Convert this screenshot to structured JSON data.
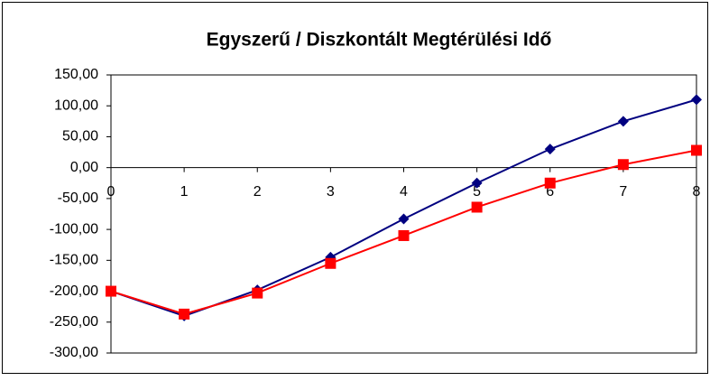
{
  "chart_data": {
    "type": "line",
    "title": "Egyszerű / Diszkontált Megtérülési Idő",
    "x": [
      0,
      1,
      2,
      3,
      4,
      5,
      6,
      7,
      8
    ],
    "xlim": [
      0,
      8
    ],
    "xticks": [
      0,
      1,
      2,
      3,
      4,
      5,
      6,
      7,
      8
    ],
    "ylim": [
      -300,
      150
    ],
    "yticks": [
      {
        "value": -300,
        "label": "-300,00"
      },
      {
        "value": -250,
        "label": "-250,00"
      },
      {
        "value": -200,
        "label": "-200,00"
      },
      {
        "value": -150,
        "label": "-150,00"
      },
      {
        "value": -100,
        "label": "-100,00"
      },
      {
        "value": -50,
        "label": "-50,00"
      },
      {
        "value": 0,
        "label": "0,00"
      },
      {
        "value": 50,
        "label": "50,00"
      },
      {
        "value": 100,
        "label": "100,00"
      },
      {
        "value": 150,
        "label": "150,00"
      }
    ],
    "grid": false,
    "series": [
      {
        "color": "#000080",
        "marker": "diamond",
        "values": [
          -200,
          -240,
          -198,
          -145,
          -83,
          -25,
          30,
          75,
          110
        ]
      },
      {
        "color": "#ff0000",
        "marker": "square",
        "values": [
          -200,
          -237,
          -203,
          -155,
          -110,
          -64,
          -25,
          5,
          28
        ]
      }
    ]
  }
}
